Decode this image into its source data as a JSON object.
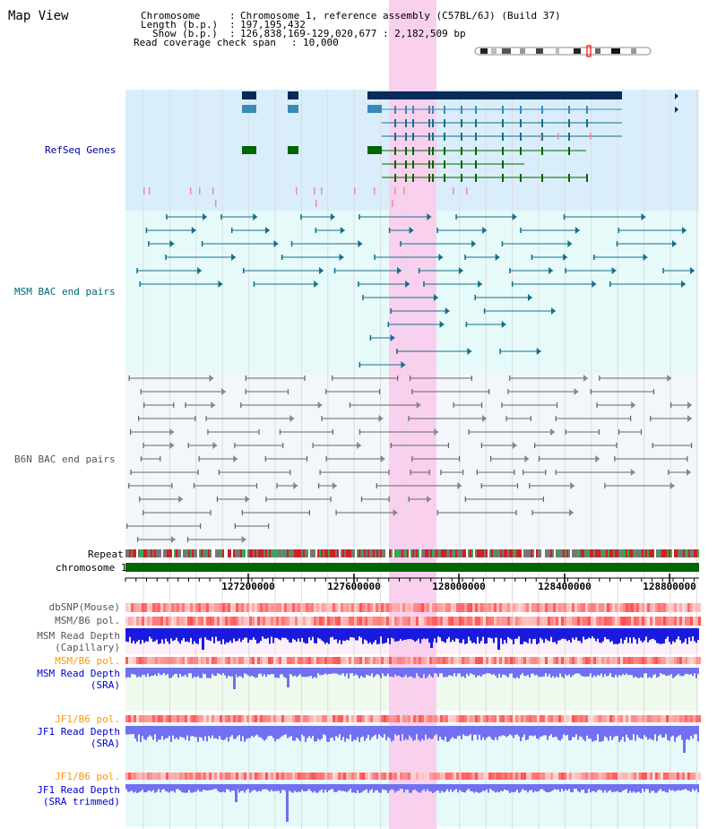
{
  "title": "Map View",
  "header": {
    "chromosome_key": "Chromosome",
    "chromosome_val": "Chromosome 1, reference assembly (C57BL/6J) (Build 37)",
    "length_key": "Length (b.p.)",
    "length_val": "197,195,432",
    "show_key": "Show (b.p.)",
    "show_val": "126,838,169-129,020,677 : 2,182,509 bp",
    "coverage_key": "Read coverage check span",
    "coverage_val": "10,000"
  },
  "tracks": {
    "refseq": "RefSeq Genes",
    "msm_bac": "MSM BAC end pairs",
    "b6n_bac": "B6N BAC end pairs",
    "repeat": "Repeat",
    "chromosome": "chromosome 1",
    "dbsnp": "dbSNP(Mouse)",
    "msm_b6_pol": "MSM/B6 pol.",
    "msm_read_depth_cap_1": "MSM Read Depth",
    "msm_read_depth_cap_2": "(Capillary)",
    "msm_b6_pol2": "MSM/B6 pol.",
    "msm_read_depth_sra_1": "MSM Read Depth",
    "msm_read_depth_sra_2": "(SRA)",
    "jf1_b6_pol": "JF1/B6 pol.",
    "jf1_read_depth_sra_1": "JF1 Read Depth",
    "jf1_read_depth_sra_2": "(SRA)",
    "jf1_b6_pol2": "JF1/B6 pol.",
    "jf1_read_depth_trim_1": "JF1 Read Depth",
    "jf1_read_depth_trim_2": "(SRA trimmed)"
  },
  "axis_ticks": [
    "127200000",
    "127600000",
    "128000000",
    "128400000",
    "128800000"
  ],
  "colors": {
    "refseq_bg": "#d9eefa",
    "msm_bg": "#e6fafa",
    "b6n_bg": "#f3f6fa",
    "highlight": "#f9d0ee",
    "gene_navy": "#0a2a5a",
    "gene_blue": "#3a8ab8",
    "gene_green": "#006600",
    "msm_line": "#136f8a",
    "b6n_line": "#666666",
    "chrom_green": "#006600",
    "depth_blue": "#1a1adf",
    "depth_light": "#7070f0"
  }
}
